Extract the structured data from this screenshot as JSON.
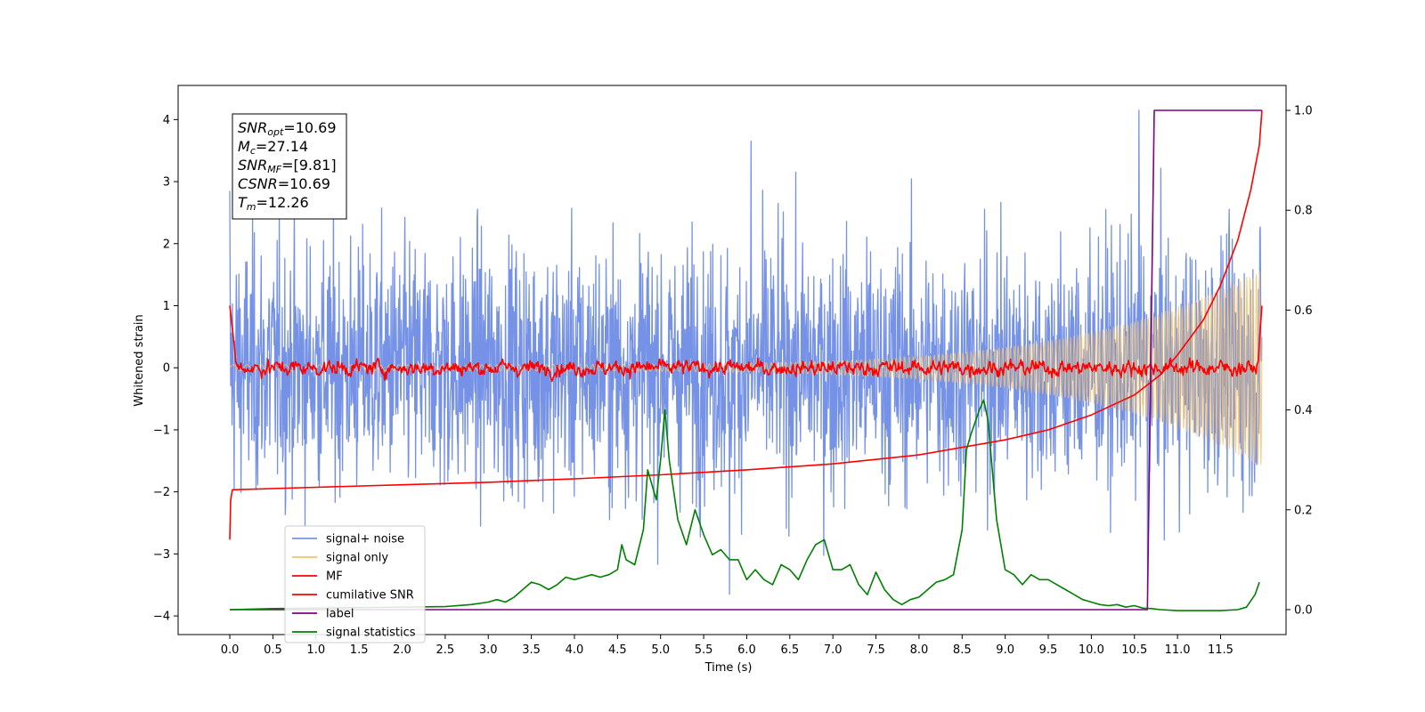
{
  "chart_data": {
    "type": "line",
    "xlabel": "Time (s)",
    "ylabel": "Whitened strain",
    "x_range": [
      -0.6,
      12.26
    ],
    "ylim": [
      -4.3,
      4.55
    ],
    "y2lim": [
      -0.05,
      1.05
    ],
    "x_ticks": [
      "0.0",
      "0.5",
      "1.0",
      "1.5",
      "2.0",
      "2.5",
      "3.0",
      "3.5",
      "4.0",
      "4.5",
      "5.0",
      "5.5",
      "6.0",
      "6.5",
      "7.0",
      "7.5",
      "8.0",
      "8.5",
      "9.0",
      "9.5",
      "10.0",
      "10.5",
      "11.0",
      "11.5"
    ],
    "y_ticks": [
      "4",
      "3",
      "2",
      "1",
      "0",
      "−1",
      "−2",
      "−3",
      "−4"
    ],
    "y2_ticks": [
      "1.0",
      "0.8",
      "0.6",
      "0.4",
      "0.2",
      "0.0"
    ],
    "grid": false,
    "legend": {
      "placement": "lower-left",
      "entries": [
        {
          "label": "signal+ noise",
          "color": "#7592e6"
        },
        {
          "label": "signal only",
          "color": "#f5c26b"
        },
        {
          "label": "MF",
          "color": "#ff0000"
        },
        {
          "label": "cumilative SNR",
          "color": "#ff0000"
        },
        {
          "label": "label",
          "color": "#800080"
        },
        {
          "label": "signal statistics",
          "color": "#008000"
        }
      ]
    },
    "annotation": {
      "lines": [
        {
          "var": "SNR",
          "sub": "opt",
          "value": "=10.69"
        },
        {
          "var": "M",
          "sub": "c",
          "value": "=27.14"
        },
        {
          "var": "SNR",
          "sub": "MF",
          "value": "=[9.81]"
        },
        {
          "var": "CSNR",
          "sub": "",
          "value": "=10.69"
        },
        {
          "var": "T",
          "sub": "m",
          "value": "=12.26"
        }
      ]
    },
    "series": [
      {
        "name": "signal+ noise",
        "axis": "left",
        "color": "#7592e6",
        "model": "noise",
        "t_start": 0.0,
        "t_end": 11.98,
        "sigma": 1.0,
        "peaks": [
          [
            0.0,
            2.85
          ],
          [
            5.8,
            -3.65
          ],
          [
            6.05,
            3.65
          ],
          [
            10.55,
            4.15
          ],
          [
            10.65,
            -3.55
          ]
        ]
      },
      {
        "name": "signal only",
        "axis": "left",
        "color": "#f5c26b",
        "model": "chirp",
        "t_start": 0.0,
        "t_end": 11.98,
        "amplitude_start": 0.05,
        "amplitude_end": 1.6
      },
      {
        "name": "MF",
        "axis": "left",
        "color": "#ff0000",
        "model": "noise-small",
        "t_start": 0.0,
        "t_end": 11.98,
        "start_value": 1.0,
        "end_value": 1.0,
        "sigma": 0.08
      },
      {
        "name": "cumilative SNR",
        "axis": "right",
        "color": "#ff0000",
        "x": [
          0.0,
          0.01,
          0.03,
          1.0,
          2.0,
          3.0,
          4.0,
          5.0,
          6.0,
          7.0,
          8.0,
          9.0,
          9.5,
          10.0,
          10.5,
          10.8,
          11.0,
          11.3,
          11.5,
          11.7,
          11.85,
          11.95,
          11.98
        ],
        "values": [
          0.14,
          0.22,
          0.24,
          0.245,
          0.25,
          0.255,
          0.262,
          0.27,
          0.28,
          0.292,
          0.31,
          0.34,
          0.36,
          0.39,
          0.43,
          0.47,
          0.51,
          0.58,
          0.65,
          0.74,
          0.84,
          0.93,
          1.0
        ]
      },
      {
        "name": "label",
        "axis": "right",
        "color": "#800080",
        "x": [
          0.0,
          10.65,
          10.73,
          11.98
        ],
        "values": [
          0.0,
          0.0,
          1.0,
          1.0
        ]
      },
      {
        "name": "signal statistics",
        "axis": "right",
        "color": "#008000",
        "x": [
          0.0,
          0.5,
          1.0,
          1.5,
          2.0,
          2.5,
          2.8,
          3.0,
          3.1,
          3.2,
          3.3,
          3.4,
          3.5,
          3.6,
          3.7,
          3.8,
          3.9,
          4.0,
          4.1,
          4.2,
          4.3,
          4.4,
          4.5,
          4.55,
          4.6,
          4.7,
          4.8,
          4.85,
          4.9,
          4.95,
          5.0,
          5.05,
          5.1,
          5.2,
          5.3,
          5.4,
          5.5,
          5.6,
          5.7,
          5.8,
          5.9,
          6.0,
          6.1,
          6.2,
          6.3,
          6.4,
          6.5,
          6.6,
          6.7,
          6.8,
          6.9,
          7.0,
          7.1,
          7.2,
          7.3,
          7.4,
          7.5,
          7.6,
          7.7,
          7.8,
          7.9,
          8.0,
          8.1,
          8.2,
          8.3,
          8.4,
          8.5,
          8.55,
          8.6,
          8.7,
          8.75,
          8.8,
          8.9,
          9.0,
          9.1,
          9.2,
          9.3,
          9.4,
          9.5,
          9.6,
          9.7,
          9.8,
          9.9,
          10.0,
          10.1,
          10.2,
          10.3,
          10.4,
          10.5,
          10.6,
          10.7,
          10.8,
          11.0,
          11.5,
          11.7,
          11.8,
          11.9,
          11.95
        ],
        "values": [
          0.0,
          0.002,
          0.003,
          0.004,
          0.005,
          0.006,
          0.01,
          0.015,
          0.02,
          0.015,
          0.025,
          0.04,
          0.055,
          0.05,
          0.04,
          0.05,
          0.065,
          0.06,
          0.065,
          0.07,
          0.065,
          0.07,
          0.08,
          0.13,
          0.1,
          0.09,
          0.16,
          0.28,
          0.25,
          0.22,
          0.3,
          0.4,
          0.3,
          0.18,
          0.13,
          0.2,
          0.15,
          0.11,
          0.12,
          0.1,
          0.1,
          0.06,
          0.08,
          0.06,
          0.05,
          0.09,
          0.08,
          0.06,
          0.1,
          0.13,
          0.14,
          0.08,
          0.08,
          0.09,
          0.05,
          0.03,
          0.075,
          0.04,
          0.02,
          0.01,
          0.02,
          0.025,
          0.04,
          0.055,
          0.06,
          0.07,
          0.16,
          0.32,
          0.35,
          0.4,
          0.42,
          0.38,
          0.18,
          0.08,
          0.07,
          0.05,
          0.07,
          0.06,
          0.06,
          0.05,
          0.04,
          0.03,
          0.02,
          0.015,
          0.01,
          0.008,
          0.01,
          0.005,
          0.008,
          0.003,
          0.002,
          0.0,
          -0.002,
          -0.002,
          0.0,
          0.005,
          0.03,
          0.055
        ]
      }
    ]
  }
}
